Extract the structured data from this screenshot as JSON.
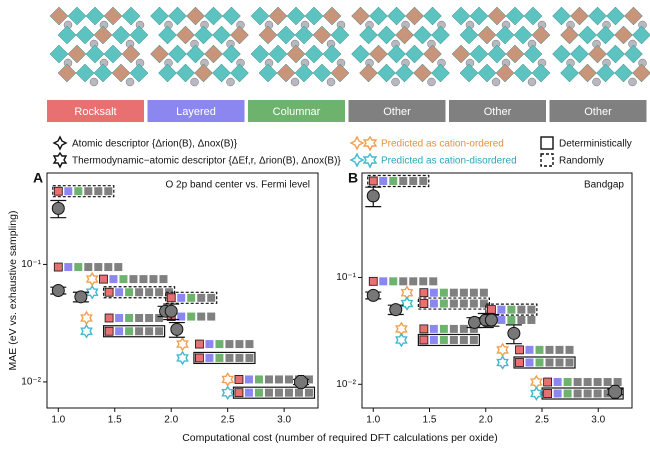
{
  "structures": [
    {
      "label": "Rocksalt",
      "color": "#e87070"
    },
    {
      "label": "Layered",
      "color": "#8c87f0"
    },
    {
      "label": "Columnar",
      "color": "#6db36d"
    },
    {
      "label": "Other",
      "color": "#808080"
    },
    {
      "label": "Other",
      "color": "#808080"
    },
    {
      "label": "Other",
      "color": "#808080"
    }
  ],
  "legend": {
    "items": [
      "Atomic descriptor {Δrion(B), Δnox(B)}",
      "Thermodynamic−atomic descriptor {ΔEf,r, Δrion(B), Δnox(B)}",
      "Predicted as cation-ordered",
      "Predicted as cation-disordered",
      "Deterministically",
      "Randomly"
    ]
  },
  "chart_data": [
    {
      "type": "scatter",
      "panel": "A",
      "title": "O 2p band center vs. Fermi level",
      "xlabel": "Computational cost (number of required DFT calculations per oxide)",
      "ylabel": "MAE (eV vs. exhaustive sampling)",
      "log_y": true,
      "xlim": [
        0.9,
        3.3
      ],
      "ylim": [
        0.006,
        0.6
      ],
      "xticks": [
        {
          "value": 1,
          "label": "1.0"
        },
        {
          "value": 1.5,
          "label": "1.5"
        },
        {
          "value": 2,
          "label": "2.0"
        },
        {
          "value": 2.5,
          "label": "2.5"
        },
        {
          "value": 3,
          "label": "3.0"
        }
      ],
      "yticks": [
        {
          "value": 0.01,
          "label": "10⁻²"
        },
        {
          "value": 0.1,
          "label": "10⁻¹"
        }
      ],
      "circles": {
        "x": [
          1.0,
          1.0,
          1.2,
          1.95,
          2.0,
          2.05,
          3.15
        ],
        "values": [
          0.3,
          0.06,
          0.053,
          0.04,
          0.04,
          0.028,
          0.01
        ],
        "errors": [
          0.05,
          0.004,
          0.005,
          0.004,
          0.006,
          0.004,
          0.0005
        ],
        "shapes": [
          "circle",
          "circle",
          "circle",
          "circle",
          "circle",
          "circle",
          "octagon"
        ]
      },
      "stars": {
        "x": [
          1.3,
          1.3,
          1.25,
          1.25,
          2.1,
          2.1,
          2.5,
          2.5
        ],
        "values": [
          0.075,
          0.058,
          0.035,
          0.027,
          0.021,
          0.016,
          0.0105,
          0.0081
        ],
        "colors": [
          "#f0a050",
          "#40b8d0",
          "#f0a050",
          "#40b8d0",
          "#f0a050",
          "#40b8d0",
          "#f0a050",
          "#40b8d0"
        ]
      },
      "rows": [
        {
          "x": 1.0,
          "y": 0.42,
          "seq": [
            0,
            1,
            2,
            3,
            3,
            3
          ],
          "border": "dashed"
        },
        {
          "x": 1.0,
          "y": 0.095,
          "seq": [
            0,
            1,
            2,
            3,
            3,
            3,
            3
          ],
          "border": "none"
        },
        {
          "x": 1.4,
          "y": 0.075,
          "seq": [
            0,
            1,
            2,
            3,
            3,
            3,
            3
          ],
          "border": "none"
        },
        {
          "x": 1.45,
          "y": 0.058,
          "seq": [
            0,
            1,
            2,
            3,
            3,
            3,
            3
          ],
          "border": "dashed"
        },
        {
          "x": 1.45,
          "y": 0.035,
          "seq": [
            0,
            1,
            2,
            3,
            3,
            3
          ],
          "border": "none"
        },
        {
          "x": 1.45,
          "y": 0.027,
          "seq": [
            0,
            1,
            2,
            3,
            3,
            3
          ],
          "border": "solid"
        },
        {
          "x": 2.0,
          "y": 0.052,
          "seq": [
            0,
            1,
            2,
            3,
            3
          ],
          "border": "dashed"
        },
        {
          "x": 2.0,
          "y": 0.036,
          "seq": [
            0,
            1,
            2,
            3,
            3
          ],
          "border": "none"
        },
        {
          "x": 2.25,
          "y": 0.021,
          "seq": [
            0,
            1,
            2,
            3,
            3,
            3
          ],
          "border": "none"
        },
        {
          "x": 2.25,
          "y": 0.016,
          "seq": [
            0,
            1,
            2,
            3,
            3,
            3
          ],
          "border": "solid"
        },
        {
          "x": 2.6,
          "y": 0.0105,
          "seq": [
            0,
            1,
            2,
            3,
            3,
            3,
            3,
            3
          ],
          "border": "none"
        },
        {
          "x": 2.6,
          "y": 0.0081,
          "seq": [
            0,
            1,
            2,
            3,
            3,
            3,
            3,
            3
          ],
          "border": "solid"
        }
      ]
    },
    {
      "type": "scatter",
      "panel": "B",
      "title": "Bandgap",
      "log_y": true,
      "xlim": [
        0.9,
        3.3
      ],
      "ylim": [
        0.006,
        0.95
      ],
      "xticks": [
        {
          "value": 1,
          "label": "1.0"
        },
        {
          "value": 1.5,
          "label": "1.5"
        },
        {
          "value": 2,
          "label": "2.0"
        },
        {
          "value": 2.5,
          "label": "2.5"
        },
        {
          "value": 3,
          "label": "3.0"
        }
      ],
      "yticks": [
        {
          "value": 0.01,
          "label": "10⁻²"
        },
        {
          "value": 0.1,
          "label": "10⁻¹"
        }
      ],
      "circles": {
        "x": [
          1.0,
          1.0,
          1.2,
          1.9,
          2.0,
          2.05,
          2.25,
          3.15
        ],
        "values": [
          0.58,
          0.068,
          0.05,
          0.038,
          0.04,
          0.04,
          0.03,
          0.0085
        ],
        "errors": [
          0.12,
          0.005,
          0.005,
          0.004,
          0.006,
          0.005,
          0.006,
          0.0005
        ],
        "shapes": [
          "circle",
          "circle",
          "circle",
          "circle",
          "circle",
          "circle",
          "circle",
          "octagon"
        ]
      },
      "stars": {
        "x": [
          1.3,
          1.3,
          1.25,
          1.25,
          2.15,
          2.15,
          2.45,
          2.45
        ],
        "values": [
          0.072,
          0.057,
          0.033,
          0.026,
          0.021,
          0.016,
          0.0105,
          0.0082
        ],
        "colors": [
          "#f0a050",
          "#40b8d0",
          "#f0a050",
          "#40b8d0",
          "#f0a050",
          "#40b8d0",
          "#f0a050",
          "#40b8d0"
        ]
      },
      "rows": [
        {
          "x": 1.0,
          "y": 0.8,
          "seq": [
            0,
            1,
            2,
            3,
            3,
            3
          ],
          "border": "dashed"
        },
        {
          "x": 1.0,
          "y": 0.092,
          "seq": [
            0,
            1,
            2,
            3,
            3,
            3,
            3
          ],
          "border": "none"
        },
        {
          "x": 1.45,
          "y": 0.072,
          "seq": [
            0,
            1,
            2,
            3,
            3,
            3,
            3
          ],
          "border": "none"
        },
        {
          "x": 1.45,
          "y": 0.057,
          "seq": [
            0,
            1,
            2,
            3,
            3,
            3,
            3
          ],
          "border": "dashed"
        },
        {
          "x": 1.45,
          "y": 0.033,
          "seq": [
            0,
            1,
            2,
            3,
            3,
            3
          ],
          "border": "none"
        },
        {
          "x": 1.45,
          "y": 0.026,
          "seq": [
            0,
            1,
            2,
            3,
            3,
            3
          ],
          "border": "solid"
        },
        {
          "x": 2.05,
          "y": 0.05,
          "seq": [
            0,
            1,
            2,
            3,
            3
          ],
          "border": "dashed"
        },
        {
          "x": 2.05,
          "y": 0.04,
          "seq": [
            0,
            1,
            2,
            3,
            3
          ],
          "border": "none"
        },
        {
          "x": 2.3,
          "y": 0.021,
          "seq": [
            0,
            1,
            2,
            3,
            3,
            3
          ],
          "border": "none"
        },
        {
          "x": 2.3,
          "y": 0.016,
          "seq": [
            0,
            1,
            2,
            3,
            3,
            3
          ],
          "border": "solid"
        },
        {
          "x": 2.55,
          "y": 0.0105,
          "seq": [
            0,
            1,
            2,
            3,
            3,
            3,
            3,
            3
          ],
          "border": "none"
        },
        {
          "x": 2.55,
          "y": 0.0082,
          "seq": [
            0,
            1,
            2,
            3,
            3,
            3,
            3,
            3
          ],
          "border": "solid"
        }
      ]
    }
  ]
}
